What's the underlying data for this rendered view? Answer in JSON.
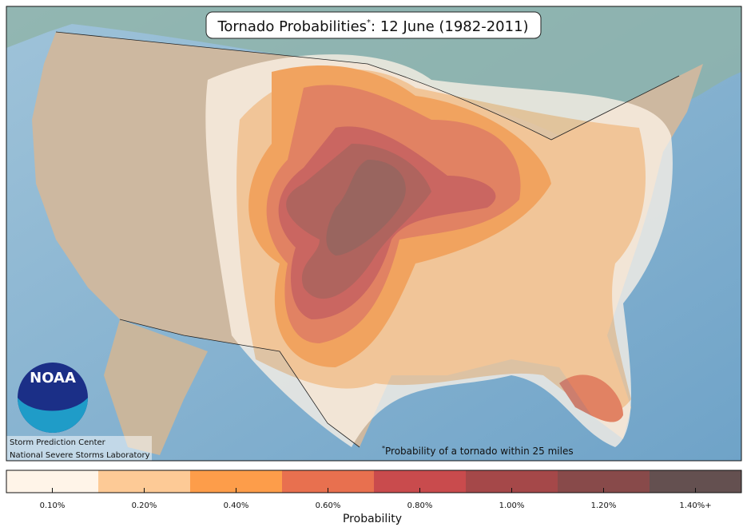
{
  "header": {
    "title": "Tornado Probabilities",
    "title_mark": "*",
    "title_date": ": 12 June (1982-2011)"
  },
  "credits": {
    "logo": "NOAA",
    "line1": "Storm Prediction Center",
    "line2": "National Severe Storms Laboratory"
  },
  "footnote": {
    "mark": "*",
    "text": "Probability of a tornado within 25 miles"
  },
  "colorbar": {
    "title": "Probability",
    "entries": [
      {
        "label": "0.10%",
        "color": "#fff4e8"
      },
      {
        "label": "0.20%",
        "color": "#fdca96"
      },
      {
        "label": "0.40%",
        "color": "#fd9d4a"
      },
      {
        "label": "0.60%",
        "color": "#e8704f"
      },
      {
        "label": "0.80%",
        "color": "#c94b4d"
      },
      {
        "label": "1.00%",
        "color": "#a54849"
      },
      {
        "label": "1.20%",
        "color": "#884a4a"
      },
      {
        "label": "1.40%+",
        "color": "#645050"
      }
    ]
  }
}
